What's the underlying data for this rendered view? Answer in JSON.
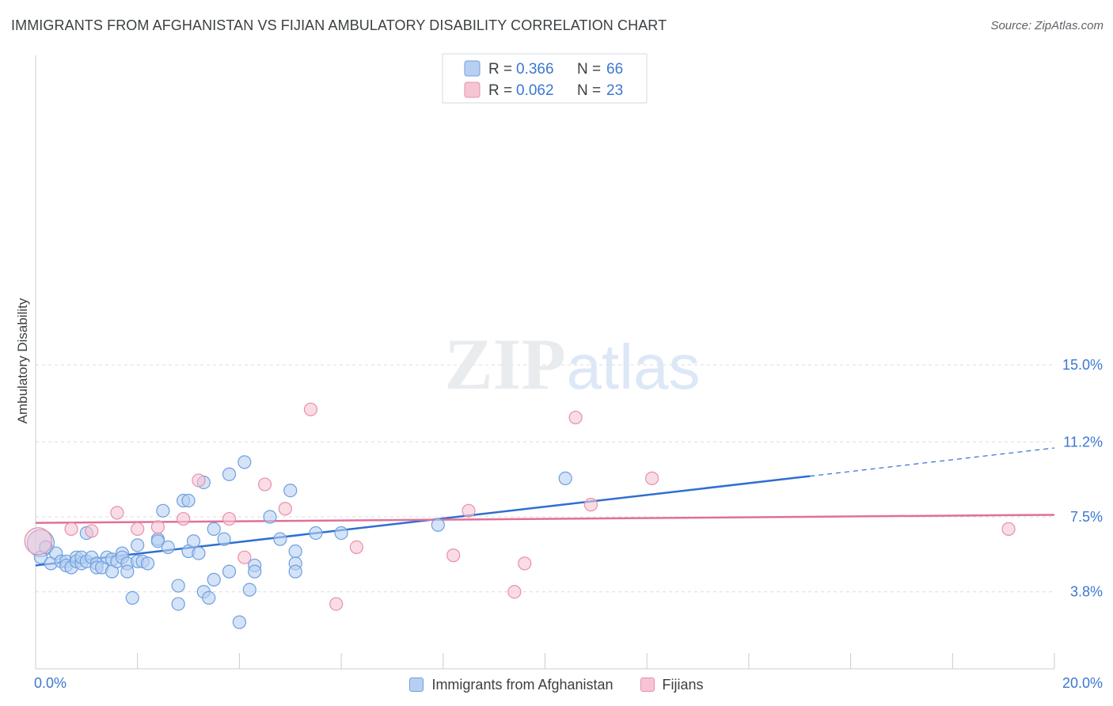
{
  "header": {
    "title": "IMMIGRANTS FROM AFGHANISTAN VS FIJIAN AMBULATORY DISABILITY CORRELATION CHART",
    "source": "Source: ZipAtlas.com"
  },
  "watermark": {
    "zip": "ZIP",
    "atlas": "atlas"
  },
  "colors": {
    "blue_fill": "#b7d0f2",
    "blue_stroke": "#6f9fdd",
    "blue_line": "#2e6fd0",
    "pink_fill": "#f6c5d3",
    "pink_stroke": "#e88fab",
    "pink_line": "#e07098",
    "value_text": "#3b77d1",
    "grid": "#d8dce0",
    "axis": "#c8ccd0"
  },
  "legend": {
    "rows": [
      {
        "r_label": "R = ",
        "r_value": "0.366",
        "n_label": "N = ",
        "n_value": "66",
        "series": "blue"
      },
      {
        "r_label": "R = ",
        "r_value": "0.062",
        "n_label": "N = ",
        "n_value": "23",
        "series": "pink"
      }
    ]
  },
  "bottom_legend": {
    "items": [
      {
        "label": "Immigrants from Afghanistan",
        "series": "blue"
      },
      {
        "label": "Fijians",
        "series": "pink"
      }
    ]
  },
  "chart_data": {
    "type": "scatter",
    "ylabel": "Ambulatory Disability",
    "xlabel": "",
    "xlim": [
      0,
      20
    ],
    "ylim": [
      0,
      15.5
    ],
    "x_tick_labels": [
      {
        "value": 0,
        "label": "0.0%"
      },
      {
        "value": 20,
        "label": "20.0%"
      }
    ],
    "y_tick_labels": [
      {
        "value": 3.8,
        "label": "3.8%"
      },
      {
        "value": 7.5,
        "label": "7.5%"
      },
      {
        "value": 11.2,
        "label": "11.2%"
      },
      {
        "value": 15.0,
        "label": "15.0%"
      }
    ],
    "x_minor_ticks": [
      2,
      4,
      6,
      8,
      10,
      12,
      14,
      16,
      18,
      20
    ],
    "grid": true,
    "series": [
      {
        "name": "Immigrants from Afghanistan",
        "color": "blue",
        "R": 0.366,
        "N": 66,
        "trend": {
          "x_start": 0,
          "y_start": 5.1,
          "x_solid_end": 15.2,
          "x_end": 20,
          "y_end": 10.9
        },
        "points": [
          [
            0.1,
            6.2,
            "L"
          ],
          [
            0.1,
            5.5
          ],
          [
            0.2,
            6.0
          ],
          [
            0.3,
            5.2
          ],
          [
            0.4,
            5.7
          ],
          [
            0.5,
            5.3
          ],
          [
            0.6,
            5.3
          ],
          [
            0.6,
            5.1
          ],
          [
            0.7,
            5.0
          ],
          [
            0.8,
            5.5
          ],
          [
            0.8,
            5.3
          ],
          [
            0.9,
            5.2
          ],
          [
            0.9,
            5.5
          ],
          [
            1.0,
            6.7
          ],
          [
            1.0,
            5.3
          ],
          [
            1.1,
            5.5
          ],
          [
            1.2,
            5.2
          ],
          [
            1.2,
            5.0
          ],
          [
            1.3,
            5.0
          ],
          [
            1.4,
            5.5
          ],
          [
            1.5,
            5.4
          ],
          [
            1.5,
            4.8
          ],
          [
            1.6,
            5.3
          ],
          [
            1.7,
            5.7
          ],
          [
            1.7,
            5.5
          ],
          [
            1.8,
            5.2
          ],
          [
            1.8,
            4.8
          ],
          [
            1.9,
            3.5
          ],
          [
            2.0,
            6.1
          ],
          [
            2.0,
            5.3
          ],
          [
            2.1,
            5.3
          ],
          [
            2.2,
            5.2
          ],
          [
            2.4,
            6.4
          ],
          [
            2.4,
            6.3
          ],
          [
            2.5,
            7.8
          ],
          [
            2.6,
            6.0
          ],
          [
            2.8,
            4.1
          ],
          [
            2.8,
            3.2
          ],
          [
            2.9,
            8.3
          ],
          [
            3.0,
            8.3
          ],
          [
            3.0,
            5.8
          ],
          [
            3.1,
            6.3
          ],
          [
            3.2,
            5.7
          ],
          [
            3.3,
            3.8
          ],
          [
            3.3,
            9.2
          ],
          [
            3.4,
            3.5
          ],
          [
            3.5,
            6.9
          ],
          [
            3.5,
            4.4
          ],
          [
            3.7,
            6.4
          ],
          [
            3.8,
            9.6
          ],
          [
            3.8,
            4.8
          ],
          [
            4.0,
            2.3
          ],
          [
            4.1,
            10.2
          ],
          [
            4.2,
            3.9
          ],
          [
            4.3,
            5.1
          ],
          [
            4.3,
            4.8
          ],
          [
            4.6,
            7.5
          ],
          [
            4.8,
            6.4
          ],
          [
            5.0,
            8.8
          ],
          [
            5.1,
            5.8
          ],
          [
            5.1,
            5.2
          ],
          [
            5.1,
            4.8
          ],
          [
            5.5,
            6.7
          ],
          [
            6.0,
            6.7
          ],
          [
            7.9,
            7.1
          ],
          [
            10.4,
            9.4
          ]
        ]
      },
      {
        "name": "Fijians",
        "color": "pink",
        "R": 0.062,
        "N": 23,
        "trend": {
          "x_start": 0,
          "y_start": 7.2,
          "x_solid_end": 20,
          "x_end": 20,
          "y_end": 7.6
        },
        "points": [
          [
            0.05,
            6.3,
            "L"
          ],
          [
            0.7,
            6.9
          ],
          [
            1.1,
            6.8
          ],
          [
            1.6,
            7.7
          ],
          [
            2.0,
            6.9
          ],
          [
            2.4,
            7.0
          ],
          [
            2.9,
            7.4
          ],
          [
            3.2,
            9.3
          ],
          [
            3.8,
            7.4
          ],
          [
            4.1,
            5.5
          ],
          [
            4.5,
            9.1
          ],
          [
            4.9,
            7.9
          ],
          [
            5.4,
            12.8
          ],
          [
            5.9,
            3.2
          ],
          [
            6.3,
            6.0
          ],
          [
            8.2,
            5.6
          ],
          [
            8.5,
            7.8
          ],
          [
            9.4,
            3.8
          ],
          [
            9.6,
            5.2
          ],
          [
            10.6,
            12.4
          ],
          [
            10.9,
            8.1
          ],
          [
            12.1,
            9.4
          ],
          [
            19.1,
            6.9
          ]
        ]
      }
    ]
  }
}
